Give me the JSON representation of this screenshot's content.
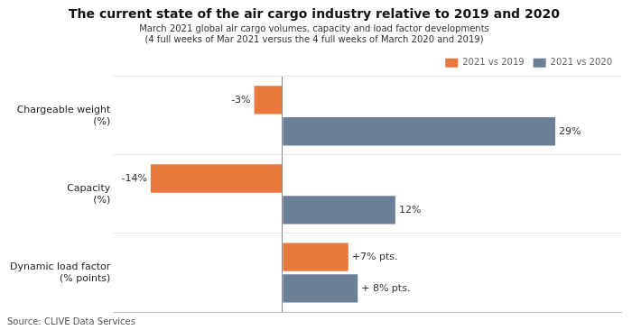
{
  "chart_data": {
    "type": "bar",
    "orientation": "horizontal",
    "title": "The current state of the air cargo industry relative to 2019 and 2020",
    "subtitle": [
      "March 2021 global air cargo volumes, capacity and load factor developments",
      "(4 full weeks of Mar 2021 versus the 4 full weeks of March 2020 and 2019)"
    ],
    "annotations": [
      "Source: CLIVE Data Services"
    ],
    "categories": [
      [
        "Chargeable weight",
        "(%)"
      ],
      [
        "Capacity",
        "(%)"
      ],
      [
        "Dynamic load factor",
        "(% points)"
      ]
    ],
    "series": [
      {
        "name": "2021 vs 2019",
        "color": "#E8783C",
        "values": [
          -3,
          -14,
          7
        ],
        "value_labels": [
          "-3%",
          "-14%",
          "+7% pts."
        ]
      },
      {
        "name": "2021 vs 2020",
        "color": "#6B7F97",
        "values": [
          29,
          12,
          8
        ],
        "value_labels": [
          "29%",
          "12%",
          "+ 8% pts."
        ]
      }
    ],
    "xlim": [
      -18,
      36
    ],
    "data_labels": true,
    "tick_labels": "y",
    "grid": false,
    "legend": "top-right"
  }
}
